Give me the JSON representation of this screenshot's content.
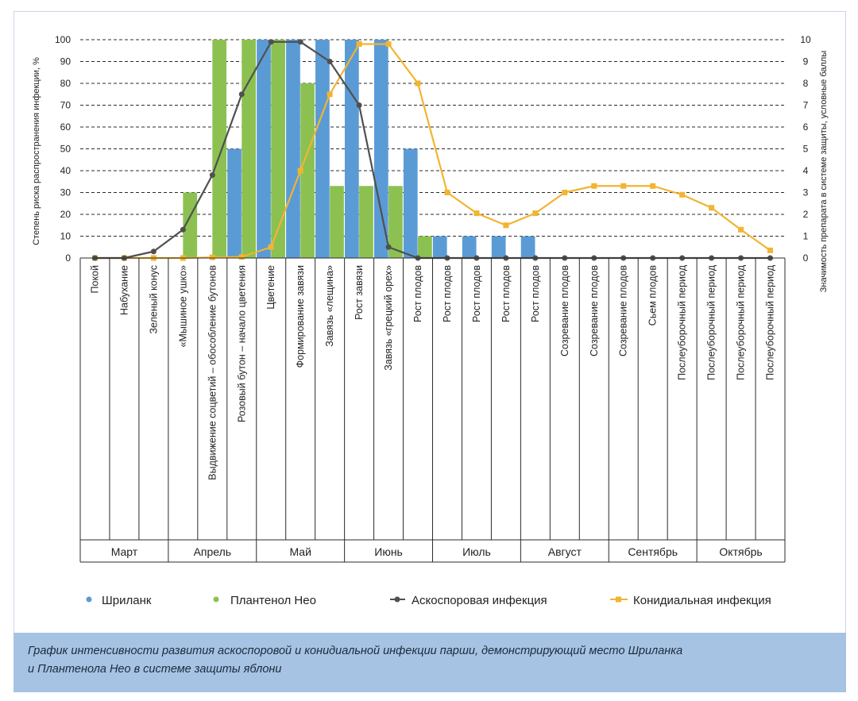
{
  "chart_data": {
    "type": "bar+line",
    "y_left_label": "Степень риска распространения инфекции, %",
    "y_right_label": "Значимость препарата в системе защиты, условные баллы",
    "y_left_ticks": [
      "0",
      "10",
      "20",
      "30",
      "40",
      "50",
      "60",
      "70",
      "80",
      "90",
      "100"
    ],
    "y_right_ticks": [
      "0",
      "1",
      "2",
      "3",
      "4",
      "5",
      "6",
      "7",
      "8",
      "9",
      "10"
    ],
    "ylim_left": [
      0,
      100
    ],
    "ylim_right": [
      0,
      10
    ],
    "categories": [
      "Покой",
      "Набухание",
      "Зеленый конус",
      "«Мышиное ушко»",
      "Выдвижение соцветий – обособление бутонов",
      "Розовый бутон – начало цветения",
      "Цветение",
      "Формирование завязи",
      "Завязь «лещина»",
      "Рост завязи",
      "Завязь «грецкий орех»",
      "Рост плодов",
      "Рост плодов",
      "Рост плодов",
      "Рост плодов",
      "Рост плодов",
      "Созревание плодов",
      "Созревание плодов",
      "Созревание плодов",
      "Сьем плодов",
      "Послеуборочный период",
      "Послеуборочный период",
      "Послеуборочный период",
      "Послеуборочный период"
    ],
    "months": [
      {
        "label": "Март",
        "span": 3
      },
      {
        "label": "Апрель",
        "span": 3
      },
      {
        "label": "Май",
        "span": 3
      },
      {
        "label": "Июнь",
        "span": 3
      },
      {
        "label": "Июль",
        "span": 3
      },
      {
        "label": "Август",
        "span": 3
      },
      {
        "label": "Сентябрь",
        "span": 3
      },
      {
        "label": "Октябрь",
        "span": 3
      }
    ],
    "series": [
      {
        "name": "Шриланк",
        "kind": "bar",
        "axis": "right",
        "color": "#5b9bd5",
        "values": [
          0,
          0,
          0,
          0,
          0,
          5,
          10,
          10,
          10,
          10,
          10,
          5,
          1,
          1,
          1,
          1,
          0,
          0,
          0,
          0,
          0,
          0,
          0,
          0
        ]
      },
      {
        "name": "Плантенол Нео",
        "kind": "bar",
        "axis": "right",
        "color": "#8cc152",
        "values": [
          0,
          0,
          0,
          3,
          10,
          10,
          10,
          8,
          3.3,
          3.3,
          3.3,
          1,
          0,
          0,
          0,
          0,
          0,
          0,
          0,
          0,
          0,
          0,
          0,
          0
        ]
      },
      {
        "name": "Аскоспоровая инфекция",
        "kind": "line",
        "axis": "left",
        "color": "#505050",
        "values": [
          0,
          0,
          3,
          13,
          38,
          75,
          99,
          99,
          90,
          70,
          5,
          0,
          0,
          0,
          0,
          0,
          0,
          0,
          0,
          0,
          0,
          0,
          0,
          0
        ]
      },
      {
        "name": "Конидиальная инфекция",
        "kind": "line",
        "axis": "left",
        "color": "#f2b431",
        "values": [
          0,
          0,
          0,
          0,
          0.3,
          0.5,
          5,
          40,
          75,
          98,
          98,
          80,
          30,
          20.5,
          15,
          20.5,
          30,
          33,
          33,
          33,
          29,
          23,
          13,
          3.5
        ]
      }
    ]
  },
  "legend": {
    "shrilank": "Шриланк",
    "plantenol": "Плантенол Нео",
    "ascospore": "Аскоспоровая инфекция",
    "conidial": "Конидиальная инфекция"
  },
  "caption": {
    "line1": "График интенсивности развития аскоспоровой и конидиальной инфекции парши, демонстрирующий место Шриланка",
    "line2": "и Плантенола Нео в системе защиты яблони"
  },
  "colors": {
    "blue": "#5b9bd5",
    "green": "#8cc152",
    "dark": "#505050",
    "orange": "#f2b431",
    "caption_bg": "#a7c3e4"
  }
}
